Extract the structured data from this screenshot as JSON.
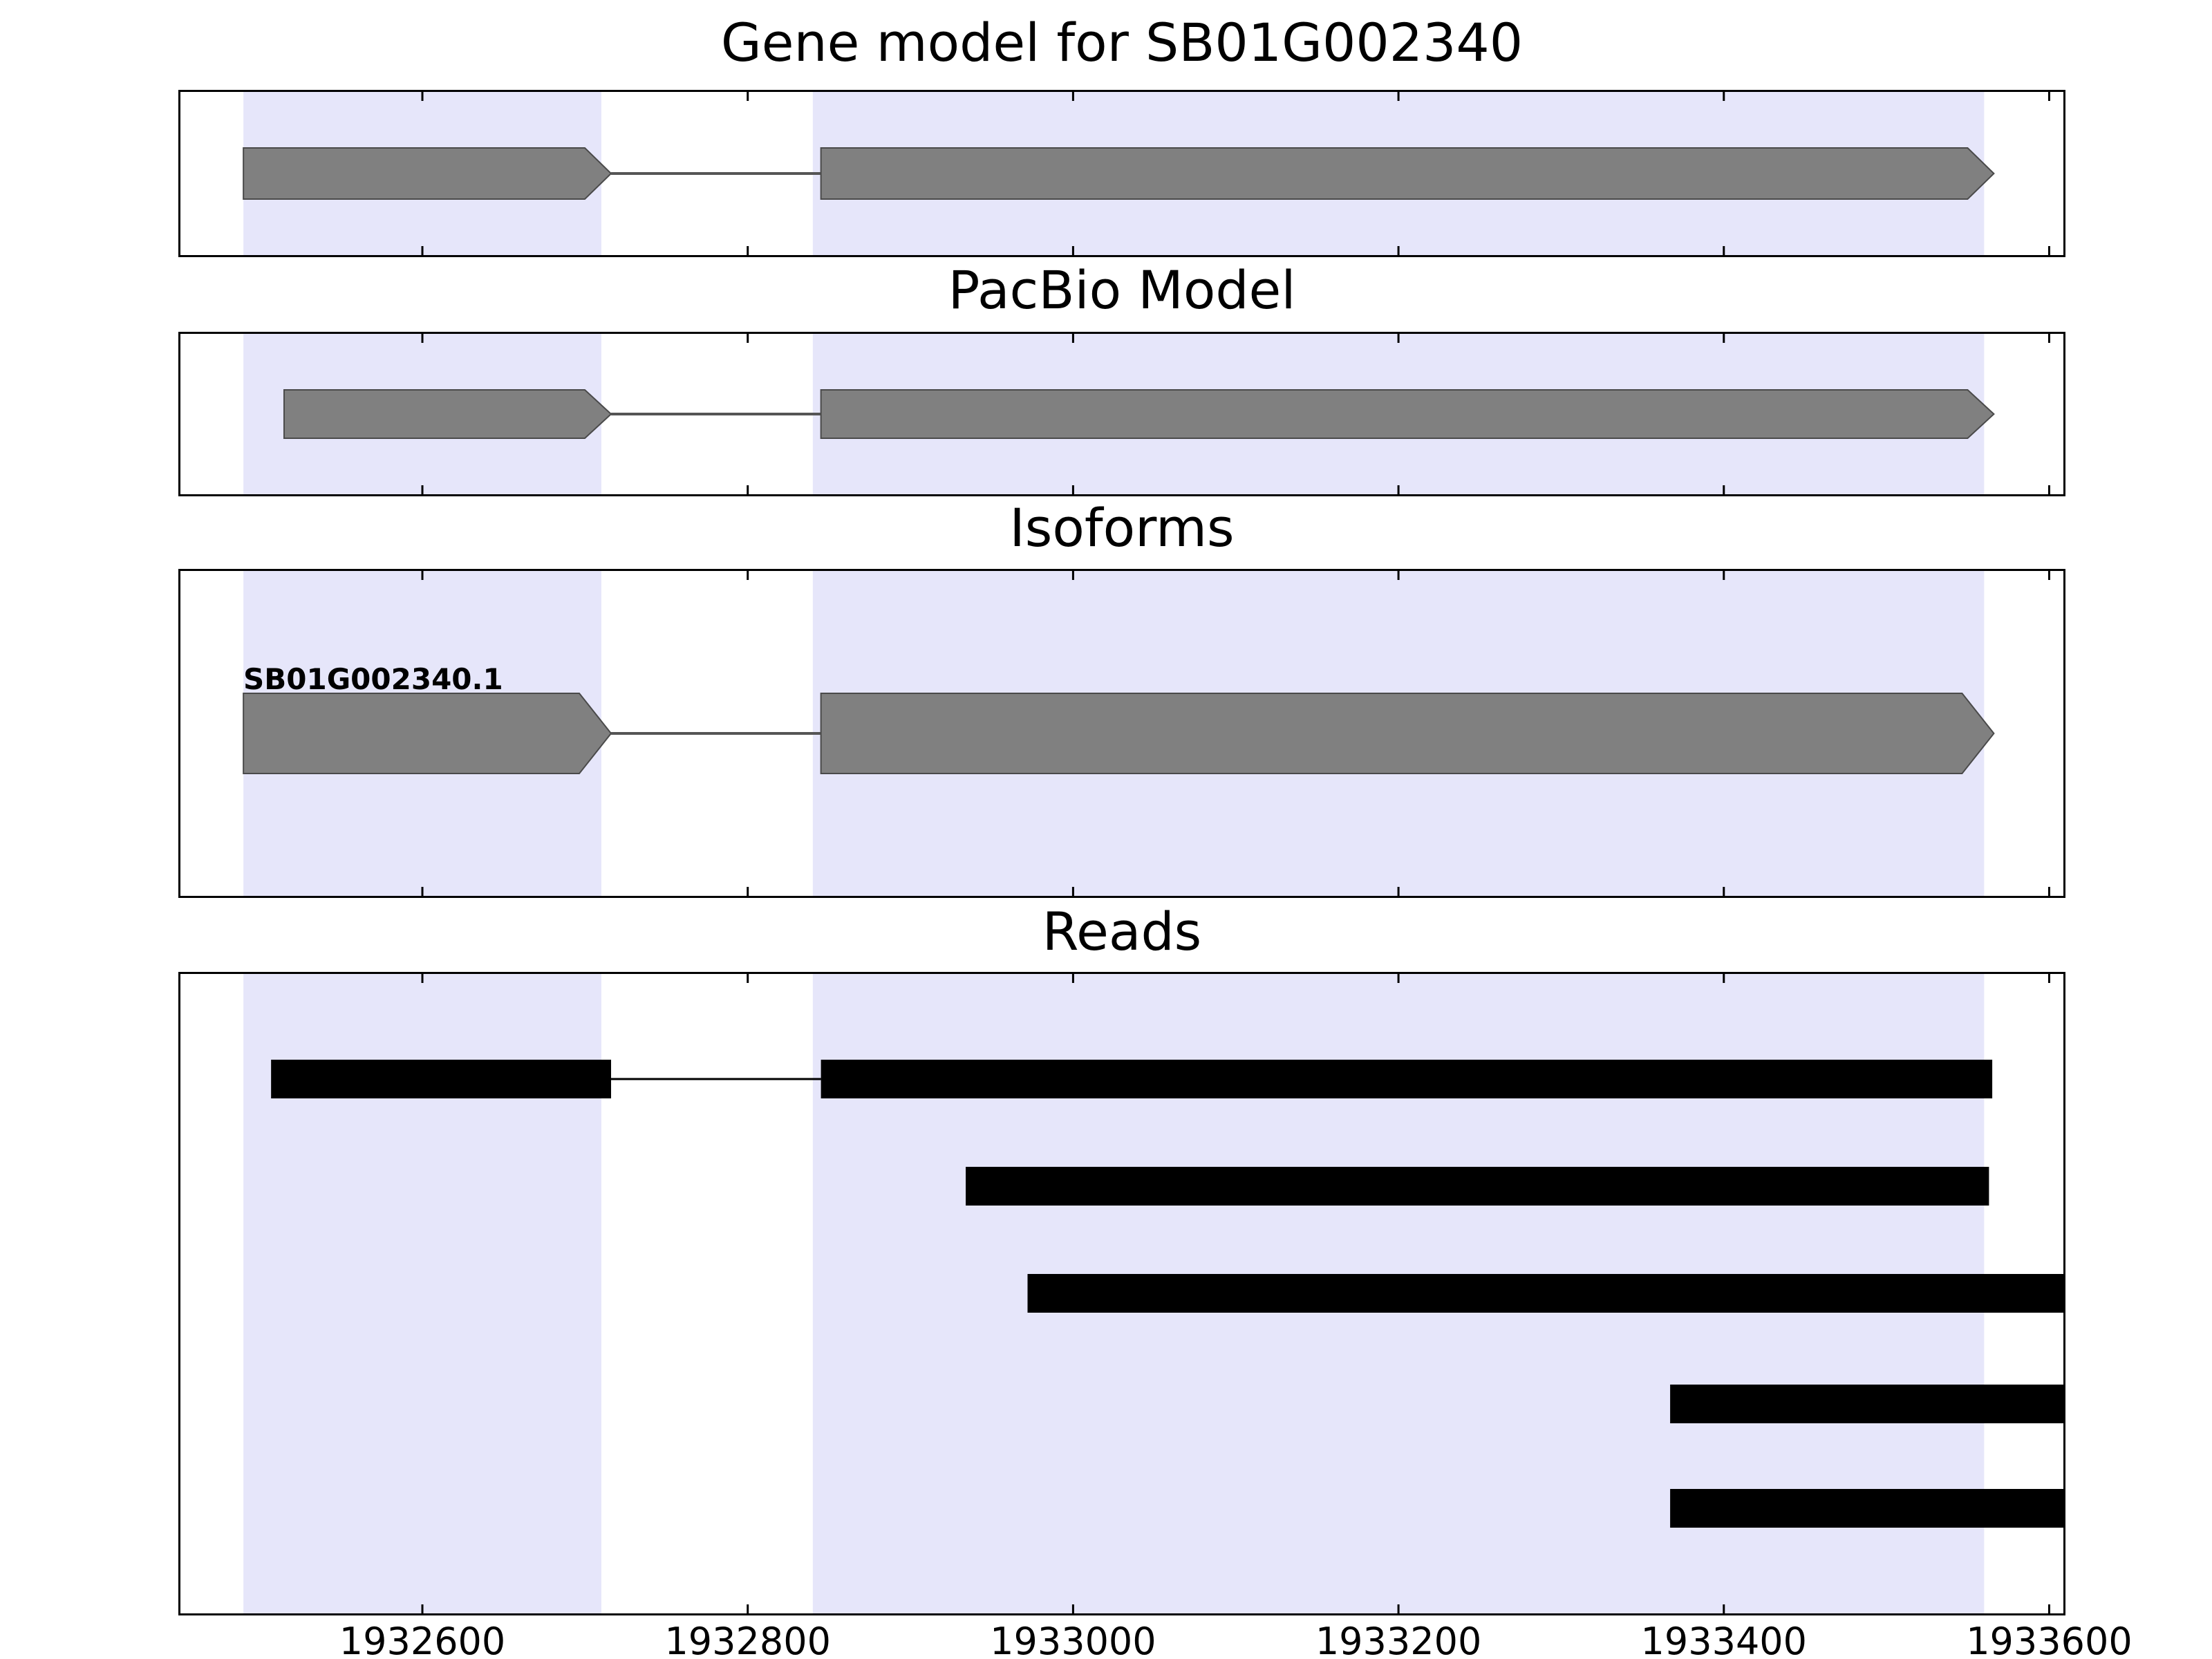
{
  "figure": {
    "background": "#ffffff",
    "frame_color": "#000000"
  },
  "chart_data": {
    "type": "gene-model-tracks",
    "xlim": [
      1932450,
      1933610
    ],
    "x_ticks": [
      1932600,
      1932800,
      1933000,
      1933200,
      1933400,
      1933600
    ],
    "x_tick_labels": [
      "1932600",
      "1932800",
      "1933000",
      "1933200",
      "1933400",
      "1933600"
    ],
    "highlight_color": "#e6e6fa",
    "highlight_regions": [
      {
        "start": 1932490,
        "end": 1932710
      },
      {
        "start": 1932840,
        "end": 1933560
      }
    ],
    "panels": [
      {
        "id": "gene-model",
        "title": "Gene model for SB01G002340",
        "color": "#808080",
        "features": [
          {
            "kind": "exon-arrow",
            "start": 1932490,
            "end": 1932716
          },
          {
            "kind": "intron",
            "start": 1932716,
            "end": 1932845
          },
          {
            "kind": "exon-arrow",
            "start": 1932845,
            "end": 1933566
          }
        ]
      },
      {
        "id": "pacbio-model",
        "title": "PacBio Model",
        "color": "#808080",
        "features": [
          {
            "kind": "exon-arrow",
            "start": 1932515,
            "end": 1932716
          },
          {
            "kind": "intron",
            "start": 1932716,
            "end": 1932845
          },
          {
            "kind": "exon-arrow",
            "start": 1932845,
            "end": 1933566
          }
        ]
      },
      {
        "id": "isoforms",
        "title": "Isoforms",
        "label": "SB01G002340.1",
        "color": "#808080",
        "features": [
          {
            "kind": "exon-arrow",
            "start": 1932490,
            "end": 1932716
          },
          {
            "kind": "intron",
            "start": 1932716,
            "end": 1932845
          },
          {
            "kind": "exon-arrow",
            "start": 1932845,
            "end": 1933566
          }
        ]
      },
      {
        "id": "reads",
        "title": "Reads",
        "color": "#000000",
        "reads": [
          {
            "blocks": [
              [
                1932507,
                1932716
              ],
              [
                1932845,
                1933565
              ]
            ]
          },
          {
            "blocks": [
              [
                1932934,
                1933563
              ]
            ]
          },
          {
            "blocks": [
              [
                1932972,
                1933610
              ]
            ]
          },
          {
            "blocks": [
              [
                1933367,
                1933610
              ]
            ]
          },
          {
            "blocks": [
              [
                1933367,
                1933610
              ]
            ]
          }
        ]
      }
    ]
  }
}
